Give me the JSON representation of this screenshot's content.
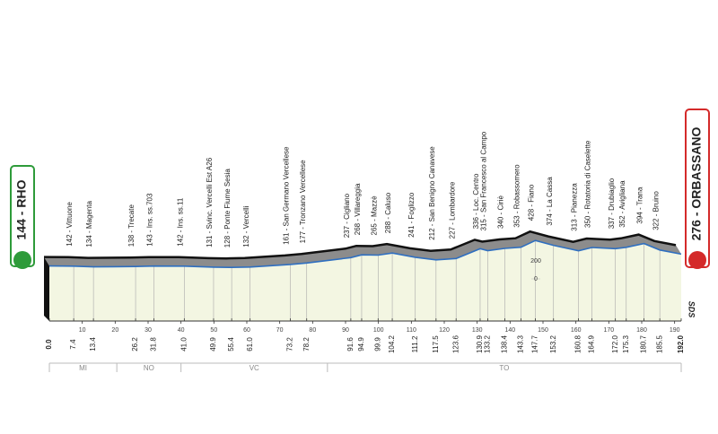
{
  "chart_data": {
    "type": "area",
    "x": [
      {
        "value": 0,
        "label": "0.0"
      },
      7.4,
      13.4,
      26.2,
      31.8,
      {
        "value": 41,
        "label": "41.0"
      },
      49.9,
      55.4,
      {
        "value": 61,
        "label": "61.0"
      },
      73.2,
      78.2,
      91.6,
      94.9,
      99.9,
      104.2,
      111.2,
      117.5,
      123.6,
      130.9,
      133.2,
      138.4,
      143.3,
      147.7,
      153.2,
      160.8,
      164.9,
      {
        "value": 172,
        "label": "172.0"
      },
      175.3,
      180.7,
      185.5,
      {
        "value": 192,
        "label": "192.0"
      }
    ],
    "values": [
      144,
      142,
      134,
      138,
      143,
      142,
      131,
      128,
      132,
      161,
      177,
      237,
      268,
      265,
      288,
      241,
      212,
      227,
      336,
      315,
      340,
      353,
      428,
      374,
      313,
      350,
      337,
      352,
      394,
      322,
      276
    ],
    "point_labels": [
      "144 - RHO",
      "142 - Vittuone",
      "134 - Magenta",
      "138 - Trecate",
      "143 - Ins. ss.703",
      "142 - Ins. ss.11",
      "131 - Svinc. Vercelli Est A26",
      "128 - Ponte Fiume Sesia",
      "132 - Vercelli",
      "161 - San Germano Vercellese",
      "177 - Tronzano Vercellese",
      "237 - Cigliano",
      "268 - Villareggia",
      "265 - Mazzè",
      "288 - Caluso",
      "241 - Foglizzo",
      "212 - San Benigno Canavese",
      "227 - Lombardore",
      "336 - Loc. Centro",
      "315 - San Francesco al Campo",
      "340 - Ciriè",
      "353 - Robassomero",
      "428 - Fiano",
      "374 - La Cassa",
      "313 - Pianezza",
      "350 - Rotatoria di Caselette",
      "337 - Drubiaglio",
      "352 - Avigliana",
      "394 - Trana",
      "322 - Bruino",
      "276 - ORBASSANO"
    ],
    "xlim": [
      0,
      192
    ],
    "xticks": [
      10,
      20,
      30,
      40,
      50,
      60,
      70,
      80,
      90,
      100,
      110,
      120,
      130,
      140,
      150,
      160,
      170,
      180,
      190
    ],
    "ylim": [
      0,
      2000
    ],
    "yticks": [
      0,
      200
    ],
    "color": "#2f6fc0",
    "fill": "#f3f6e2",
    "start_color": "#2e9b3a",
    "finish_color": "#d42a2a",
    "regions": [
      {
        "label": "MI",
        "from": 0,
        "to": 20.5
      },
      {
        "label": "NO",
        "from": 20.5,
        "to": 40
      },
      {
        "label": "VC",
        "from": 40,
        "to": 84.5
      },
      {
        "label": "TO",
        "from": 84.5,
        "to": 192
      }
    ],
    "logo": "SDS"
  }
}
